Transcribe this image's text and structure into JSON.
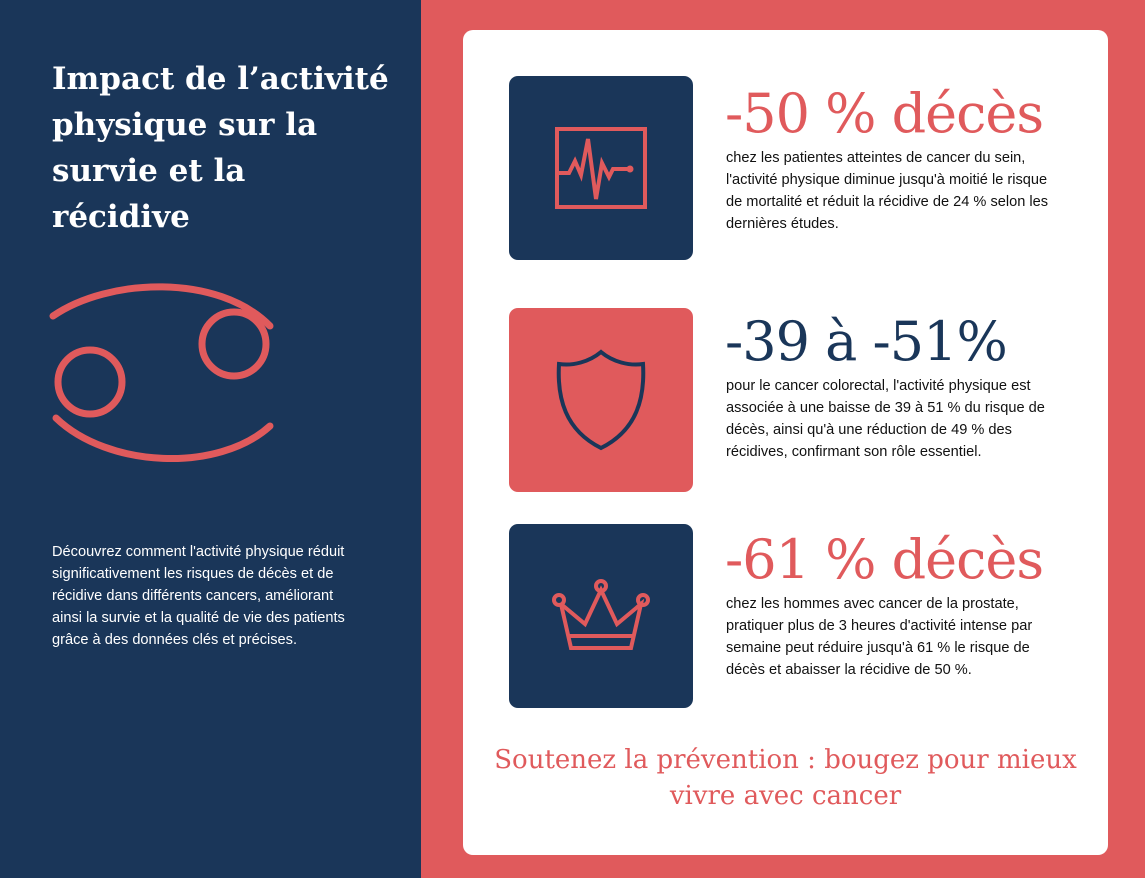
{
  "colors": {
    "navy": "#1a3659",
    "coral": "#e05a5c",
    "white": "#ffffff"
  },
  "left": {
    "title": "Impact de l’activité physique sur la survie et la récidive",
    "icon": "cancer-zodiac-icon",
    "intro": "Découvrez comment l'activité physique réduit significativement les risques de décès et de récidive dans différents cancers, améliorant ainsi la survie et la qualité de vie des patients grâce à des données clés et précises."
  },
  "stats": [
    {
      "icon": "heartbeat-monitor-icon",
      "headline": "-50 % décès",
      "text": "chez les patientes atteintes de cancer du sein, l'activité physique diminue jusqu'à moitié le risque de mortalité et réduit la récidive de 24 % selon les dernières études."
    },
    {
      "icon": "shield-icon",
      "headline": "-39 à -51%",
      "text": "pour le cancer colorectal, l'activité physique est associée à une baisse de 39 à 51 % du risque de décès, ainsi qu'à une réduction de 49 % des récidives, confirmant son rôle essentiel."
    },
    {
      "icon": "crown-icon",
      "headline": "-61 % décès",
      "text": "chez les hommes avec cancer de la prostate, pratiquer plus de 3 heures d'activité intense par semaine peut réduire jusqu'à 61 % le risque de décès et abaisser la récidive de 50 %."
    }
  ],
  "cta": "Soutenez la prévention : bougez pour mieux vivre avec cancer"
}
